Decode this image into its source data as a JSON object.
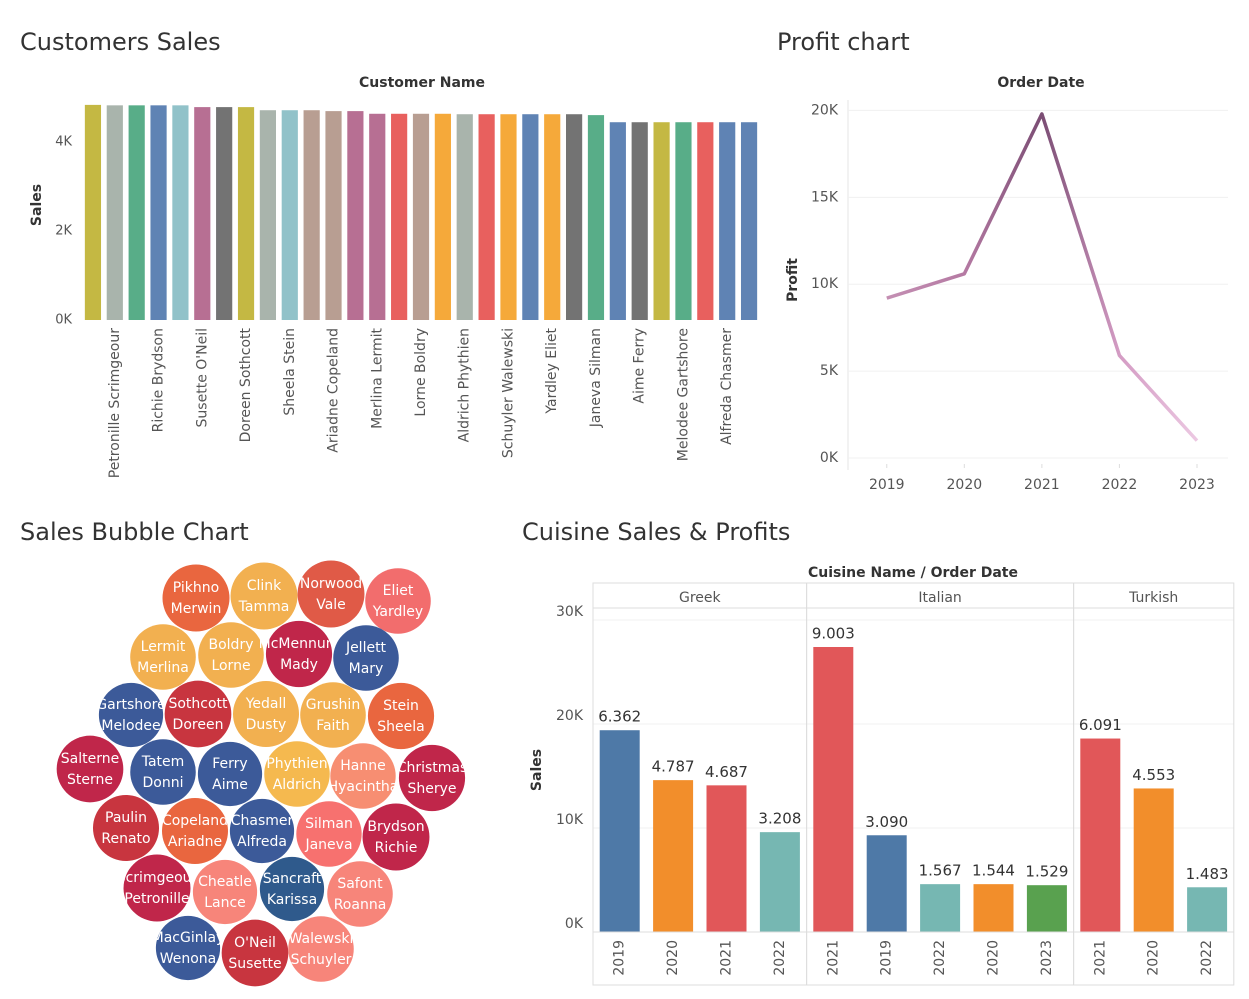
{
  "chart_data": [
    {
      "type": "bar",
      "title": "Customers Sales",
      "x_label": "Customer Name",
      "y_label": "Sales",
      "categories": [
        null,
        "Petronille Scrimgeour",
        null,
        "Richie Brydson",
        null,
        "Susette O'Neil",
        null,
        "Doreen Sothcott",
        null,
        "Sheela Stein",
        null,
        "Ariadne Copeland",
        null,
        "Merlina Lermit",
        null,
        "Lorne Boldry",
        null,
        "Aldrich Phythien",
        null,
        "Schuyler Walewski",
        null,
        "Yardley Eliet",
        null,
        "Janeva Silman",
        null,
        "Aime Ferry",
        null,
        "Melodee Gartshore",
        null,
        "Alfreda Chasmer",
        null
      ],
      "values": [
        4840,
        4830,
        4830,
        4830,
        4830,
        4790,
        4790,
        4790,
        4720,
        4720,
        4720,
        4700,
        4700,
        4640,
        4640,
        4640,
        4640,
        4630,
        4630,
        4630,
        4630,
        4630,
        4630,
        4610,
        4450,
        4450,
        4450,
        4450,
        4450,
        4450,
        4450
      ],
      "colors": [
        "#c4b843",
        "#a9b4ac",
        "#58ad88",
        "#5f83b4",
        "#91c2c9",
        "#b76f93",
        "#737373",
        "#c4b843",
        "#a9b4ac",
        "#91c2c9",
        "#b89e92",
        "#b89e92",
        "#b76f93",
        "#b76f93",
        "#e8605e",
        "#b89e92",
        "#f5a93a",
        "#a9b4ac",
        "#e8605e",
        "#f5a93a",
        "#5f83b4",
        "#f5a93a",
        "#737373",
        "#58ad88",
        "#5f83b4",
        "#737373",
        "#c4b843",
        "#58ad88",
        "#e8605e",
        "#5f83b4",
        "#5f83b4"
      ],
      "ylim": [
        0,
        4950
      ],
      "yticks": [
        {
          "value": 0,
          "label": "0K"
        },
        {
          "value": 2000,
          "label": "2K"
        },
        {
          "value": 4000,
          "label": "4K"
        }
      ]
    },
    {
      "type": "line",
      "title": "Profit chart",
      "x_label": "Order Date",
      "y_label": "Profit",
      "x": [
        2019,
        2020,
        2021,
        2022,
        2023
      ],
      "values": [
        9200,
        10600,
        19800,
        5900,
        1000
      ],
      "colors": [
        "#c48fb3",
        "#b57aa3",
        "#7b4d74",
        "#d49cc4",
        "#ecc8e2"
      ],
      "xlim": [
        2018.5,
        2023.4
      ],
      "xticks": [
        2019,
        2020,
        2021,
        2022,
        2023
      ],
      "ylim": [
        0,
        20600
      ],
      "yticks": [
        {
          "value": 0,
          "label": "0K"
        },
        {
          "value": 5000,
          "label": "5K"
        },
        {
          "value": 10000,
          "label": "10K"
        },
        {
          "value": 15000,
          "label": "15K"
        },
        {
          "value": 20000,
          "label": "20K"
        }
      ],
      "grid": true
    },
    {
      "type": "bubble",
      "title": "Sales Bubble Chart",
      "categories": [
        [
          "Pikhno",
          "Merwin"
        ],
        [
          "Clink",
          "Tamma"
        ],
        [
          "Norwood",
          "Vale"
        ],
        [
          "Eliet",
          "Yardley"
        ],
        [
          "Lermit",
          "Merlina"
        ],
        [
          "Boldry",
          "Lorne"
        ],
        [
          "McMennum",
          "Mady"
        ],
        [
          "Jellett",
          "Mary"
        ],
        [
          "Gartshore",
          "Melodee"
        ],
        [
          "Sothcott",
          "Doreen"
        ],
        [
          "Yedall",
          "Dusty"
        ],
        [
          "Grushin",
          "Faith"
        ],
        [
          "Stein",
          "Sheela"
        ],
        [
          "Salterne",
          "Sterne"
        ],
        [
          "Tatem",
          "Donni"
        ],
        [
          "Ferry",
          "Aime"
        ],
        [
          "Phythien",
          "Aldrich"
        ],
        [
          "Hanne",
          "Hyacintha"
        ],
        [
          "Christmas",
          "Sherye"
        ],
        [
          "Paulin",
          "Renato"
        ],
        [
          "Copeland",
          "Ariadne"
        ],
        [
          "Chasmer",
          "Alfreda"
        ],
        [
          "Silman",
          "Janeva"
        ],
        [
          "Brydson",
          "Richie"
        ],
        [
          "Scrimgeour",
          "Petronille"
        ],
        [
          "Cheatle",
          "Lance"
        ],
        [
          "Sancraft",
          "Karissa"
        ],
        [
          "Safont",
          "Roanna"
        ],
        [
          "MacGinlay",
          "Wenona"
        ],
        [
          "O'Neil",
          "Susette"
        ],
        [
          "Walewski",
          "Schuyler"
        ]
      ],
      "values": [
        4840,
        4830,
        4830,
        4630,
        4640,
        4640,
        4720,
        4630,
        4450,
        4790,
        4700,
        4640,
        4720,
        4790,
        4630,
        4450,
        4630,
        4610,
        4720,
        4700,
        4700,
        4450,
        4610,
        4830,
        4830,
        4450,
        4450,
        4630,
        4450,
        4790,
        4630
      ],
      "colors": [
        "#e9663f",
        "#f2b050",
        "#e05a47",
        "#f26d6d",
        "#f2b050",
        "#f2b050",
        "#c0264a",
        "#3c5a99",
        "#3c5a99",
        "#c8353f",
        "#f2b050",
        "#f2b050",
        "#e9663f",
        "#c0264a",
        "#3c5a99",
        "#3c5a99",
        "#f5b94f",
        "#f78e72",
        "#c0264a",
        "#c8353f",
        "#e9663f",
        "#3c5a99",
        "#f7716f",
        "#c0264a",
        "#c0264a",
        "#f7857a",
        "#2f5a8c",
        "#f7857a",
        "#3c5a99",
        "#c8353f",
        "#f7857a"
      ]
    },
    {
      "type": "grouped-bar",
      "title": "Cuisine Sales & Profits",
      "x_label": "Cuisine Name / Order Date",
      "y_label": "Sales",
      "groups": [
        {
          "name": "Greek",
          "categories": [
            "2019",
            "2020",
            "2021",
            "2022"
          ],
          "values": [
            19400,
            14600,
            14100,
            9600
          ],
          "labels": [
            "6.362",
            "4.787",
            "4.687",
            "3.208"
          ],
          "colors": [
            "#4e79a7",
            "#f28e2b",
            "#e15759",
            "#76b7b2"
          ]
        },
        {
          "name": "Italian",
          "categories": [
            "2021",
            "2019",
            "2022",
            "2020",
            "2023"
          ],
          "values": [
            27400,
            9300,
            4600,
            4600,
            4500
          ],
          "labels": [
            "9.003",
            "3.090",
            "1.567",
            "1.544",
            "1.529"
          ],
          "colors": [
            "#e15759",
            "#4e79a7",
            "#76b7b2",
            "#f28e2b",
            "#59a14f"
          ]
        },
        {
          "name": "Turkish",
          "categories": [
            "2021",
            "2020",
            "2022"
          ],
          "values": [
            18600,
            13800,
            4300
          ],
          "labels": [
            "6.091",
            "4.553",
            "1.483"
          ],
          "colors": [
            "#e15759",
            "#f28e2b",
            "#76b7b2"
          ]
        }
      ],
      "ylim": [
        0,
        31150
      ],
      "yticks": [
        {
          "value": 0,
          "label": "0K"
        },
        {
          "value": 10000,
          "label": "10K"
        },
        {
          "value": 20000,
          "label": "20K"
        },
        {
          "value": 30000,
          "label": "30K"
        }
      ],
      "grid": true
    }
  ]
}
